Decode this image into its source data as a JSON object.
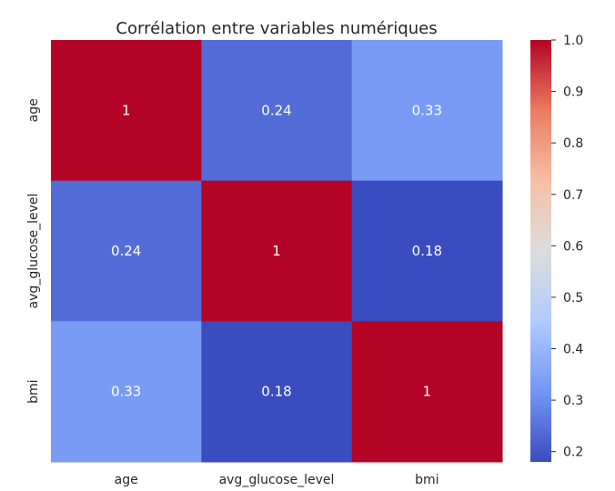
{
  "chart_data": {
    "type": "heatmap",
    "title": "Corrélation entre variables numériques",
    "xlabel": "",
    "ylabel": "",
    "x_categories": [
      "age",
      "avg_glucose_level",
      "bmi"
    ],
    "y_categories": [
      "age",
      "avg_glucose_level",
      "bmi"
    ],
    "values": [
      [
        1.0,
        0.24,
        0.33
      ],
      [
        0.24,
        1.0,
        0.18
      ],
      [
        0.33,
        0.18,
        1.0
      ]
    ],
    "annotations": [
      [
        "1",
        "0.24",
        "0.33"
      ],
      [
        "0.24",
        "1",
        "0.18"
      ],
      [
        "0.33",
        "0.18",
        "1"
      ]
    ],
    "colormap": "coolwarm",
    "colorbar": {
      "range": [
        0.18,
        1.0
      ],
      "ticks": [
        0.2,
        0.3,
        0.4,
        0.5,
        0.6,
        0.7,
        0.8,
        0.9,
        1.0
      ],
      "tick_labels": [
        "0.2",
        "0.3",
        "0.4",
        "0.5",
        "0.6",
        "0.7",
        "0.8",
        "0.9",
        "1.0"
      ],
      "position": "right"
    },
    "grid": false
  },
  "colors": {
    "text_dark": "#262626",
    "annotation_light": "#ffffff",
    "background": "#ffffff",
    "cmap_stops": [
      "#3b4cc0",
      "#7396f5",
      "#b0cbfc",
      "#dddddd",
      "#f6bfa6",
      "#ea7b60",
      "#b40426"
    ]
  }
}
